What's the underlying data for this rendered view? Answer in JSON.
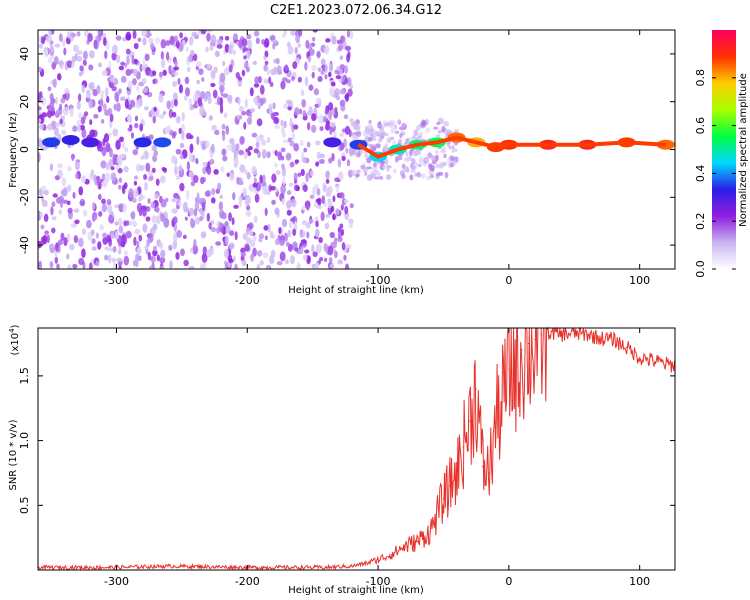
{
  "title": "C2E1.2023.072.06.34.G12",
  "chart_data": [
    {
      "type": "heatmap",
      "xlabel": "Height of straight line (km)",
      "ylabel": "Frequency (Hz)",
      "xlim": [
        -360,
        127
      ],
      "ylim": [
        -50,
        50
      ],
      "xticks": [
        -300,
        -200,
        -100,
        0,
        100
      ],
      "yticks": [
        -40,
        -20,
        0,
        20,
        40
      ],
      "colorbar": {
        "label": "Normalized spectral amplitude",
        "range": [
          0,
          1
        ],
        "ticks": [
          0.0,
          0.2,
          0.4,
          0.6,
          0.8
        ],
        "stops": [
          "#ffffff",
          "#c9b3f2",
          "#8e1fe0",
          "#2a1fe6",
          "#00d8ff",
          "#00ff40",
          "#aaff00",
          "#ffcc00",
          "#ff3000",
          "#ff0060"
        ]
      },
      "spectral_band": [
        {
          "x": -350,
          "y": 3,
          "amp": 0.35
        },
        {
          "x": -335,
          "y": 4,
          "amp": 0.32
        },
        {
          "x": -320,
          "y": 3,
          "amp": 0.3
        },
        {
          "x": -280,
          "y": 3,
          "amp": 0.34
        },
        {
          "x": -265,
          "y": 3,
          "amp": 0.36
        },
        {
          "x": -135,
          "y": 3,
          "amp": 0.3
        },
        {
          "x": -115,
          "y": 2,
          "amp": 0.35
        },
        {
          "x": -100,
          "y": -3,
          "amp": 0.45
        },
        {
          "x": -85,
          "y": 0,
          "amp": 0.48
        },
        {
          "x": -70,
          "y": 2,
          "amp": 0.52
        },
        {
          "x": -55,
          "y": 3,
          "amp": 0.55
        },
        {
          "x": -40,
          "y": 5,
          "amp": 0.85
        },
        {
          "x": -25,
          "y": 3,
          "amp": 0.8
        },
        {
          "x": -10,
          "y": 1,
          "amp": 0.88
        },
        {
          "x": 0,
          "y": 2,
          "amp": 0.9
        },
        {
          "x": 30,
          "y": 2,
          "amp": 0.92
        },
        {
          "x": 60,
          "y": 2,
          "amp": 0.92
        },
        {
          "x": 90,
          "y": 3,
          "amp": 0.88
        },
        {
          "x": 120,
          "y": 2,
          "amp": 0.85
        }
      ]
    },
    {
      "type": "line",
      "xlabel": "Height of straight line (km)",
      "ylabel": "SNR (10 * v/v)",
      "yscale_label": "(x10",
      "yscale_exp": "4",
      "yscale_close": ")",
      "xlim": [
        -360,
        127
      ],
      "ylim": [
        0,
        1.87
      ],
      "xticks": [
        -300,
        -200,
        -100,
        0,
        100
      ],
      "yticks": [
        0.5,
        1.0,
        1.5
      ],
      "series": [
        {
          "color": "#e8312b",
          "x": [
            -360,
            -300,
            -260,
            -200,
            -140,
            -120,
            -110,
            -100,
            -90,
            -80,
            -70,
            -60,
            -50,
            -45,
            -40,
            -35,
            -30,
            -25,
            -20,
            -15,
            -10,
            -5,
            0,
            5,
            10,
            15,
            20,
            25,
            30,
            40,
            50,
            60,
            70,
            80,
            90,
            100,
            110,
            120,
            127
          ],
          "y": [
            0.02,
            0.02,
            0.03,
            0.02,
            0.02,
            0.03,
            0.05,
            0.08,
            0.12,
            0.18,
            0.22,
            0.3,
            0.55,
            0.65,
            0.75,
            0.95,
            1.15,
            1.4,
            0.8,
            0.75,
            1.15,
            1.3,
            1.55,
            1.6,
            1.7,
            1.75,
            1.78,
            1.82,
            1.84,
            1.82,
            1.83,
            1.82,
            1.79,
            1.78,
            1.72,
            1.64,
            1.62,
            1.59,
            1.58
          ]
        }
      ]
    }
  ]
}
